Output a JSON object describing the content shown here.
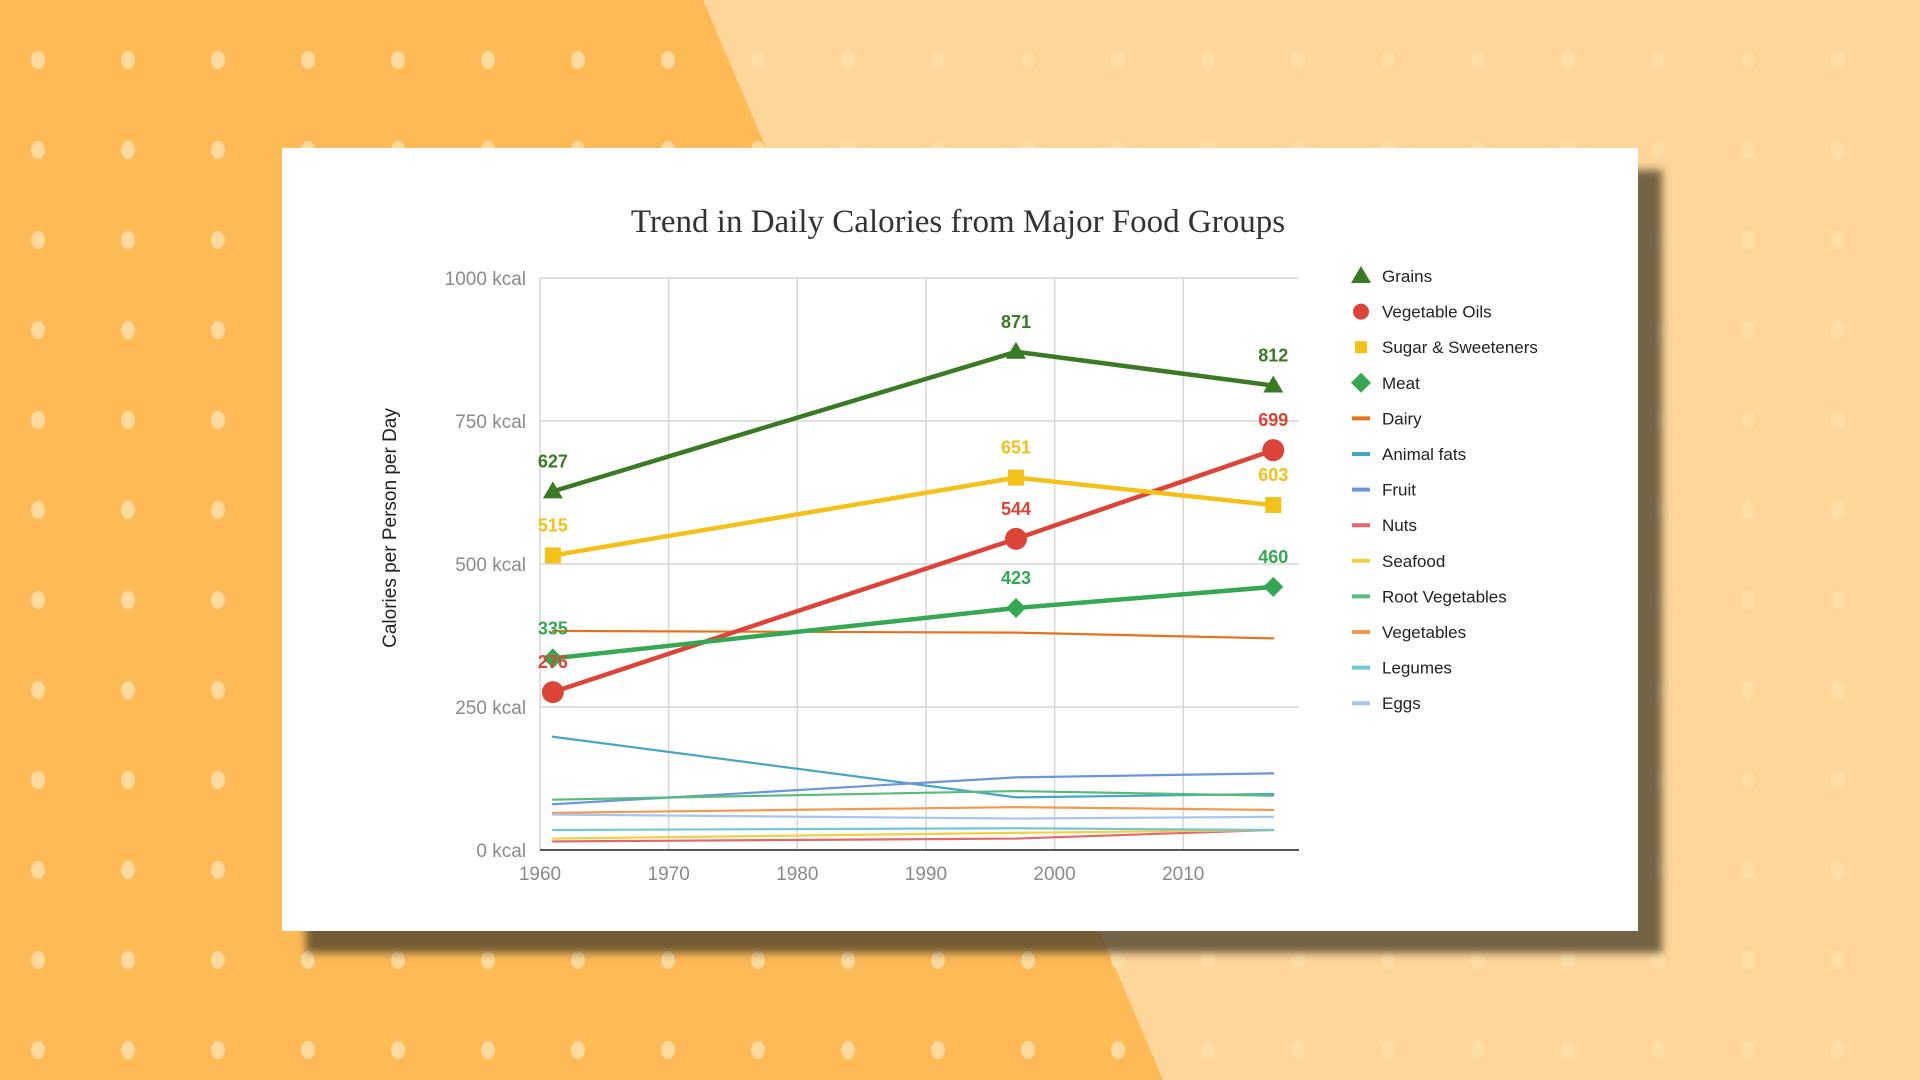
{
  "background": {
    "left_color": "#FDBA57",
    "right_color": "#FED699",
    "dot_color": "#FFDFA8"
  },
  "chart_data": {
    "type": "line",
    "title": "Trend in Daily Calories from Major Food Groups",
    "xlabel": "",
    "ylabel": "Calories per Person per Day",
    "xlim": [
      1960,
      2019
    ],
    "ylim": [
      0,
      1000
    ],
    "x_ticks": [
      1960,
      1970,
      1980,
      1990,
      2000,
      2010
    ],
    "x_tick_labels": [
      "1960",
      "1970",
      "1980",
      "1990",
      "2000",
      "2010"
    ],
    "y_ticks": [
      0,
      250,
      500,
      750,
      1000
    ],
    "y_tick_labels": [
      "0 kcal",
      "250 kcal",
      "500 kcal",
      "750 kcal",
      "1000 kcal"
    ],
    "grid": true,
    "legend": "right",
    "x": [
      1961,
      1997,
      2017
    ],
    "series": [
      {
        "name": "Grains",
        "values": [
          627,
          871,
          812
        ],
        "color": "#3A7A24",
        "marker": "triangle",
        "labels": [
          "627",
          "871",
          "812"
        ],
        "width": 4.5
      },
      {
        "name": "Vegetable Oils",
        "values": [
          276,
          544,
          699
        ],
        "color": "#DC4437",
        "marker": "circle",
        "labels": [
          "276",
          "544",
          "699"
        ],
        "width": 4.5
      },
      {
        "name": "Sugar & Sweeteners",
        "values": [
          515,
          651,
          603
        ],
        "color": "#F4C119",
        "marker": "square",
        "labels": [
          "515",
          "651",
          "603"
        ],
        "width": 4.5
      },
      {
        "name": "Meat",
        "values": [
          335,
          423,
          460
        ],
        "color": "#35A853",
        "marker": "diamond",
        "labels": [
          "335",
          "423",
          "460"
        ],
        "width": 4.5
      },
      {
        "name": "Dairy",
        "values": [
          383,
          380,
          370
        ],
        "color": "#E8711C",
        "marker": "none",
        "labels": [],
        "width": 2.2
      },
      {
        "name": "Animal fats",
        "values": [
          198,
          92,
          98
        ],
        "color": "#46A7C4",
        "marker": "none",
        "labels": [],
        "width": 2.2
      },
      {
        "name": "Fruit",
        "values": [
          80,
          127,
          134
        ],
        "color": "#6D95D8",
        "marker": "none",
        "labels": [],
        "width": 2.2
      },
      {
        "name": "Nuts",
        "values": [
          15,
          20,
          35
        ],
        "color": "#E6676B",
        "marker": "none",
        "labels": [],
        "width": 2.2
      },
      {
        "name": "Seafood",
        "values": [
          20,
          30,
          35
        ],
        "color": "#F5CF40",
        "marker": "none",
        "labels": [],
        "width": 2.2
      },
      {
        "name": "Root Vegetables",
        "values": [
          88,
          103,
          95
        ],
        "color": "#57BB7C",
        "marker": "none",
        "labels": [],
        "width": 2.2
      },
      {
        "name": "Vegetables",
        "values": [
          65,
          75,
          70
        ],
        "color": "#F49A4E",
        "marker": "none",
        "labels": [],
        "width": 2.2
      },
      {
        "name": "Legumes",
        "values": [
          35,
          38,
          35
        ],
        "color": "#72C8D6",
        "marker": "none",
        "labels": [],
        "width": 2.2
      },
      {
        "name": "Eggs",
        "values": [
          62,
          55,
          58
        ],
        "color": "#A8C3EE",
        "marker": "none",
        "labels": [],
        "width": 2.2
      }
    ]
  }
}
